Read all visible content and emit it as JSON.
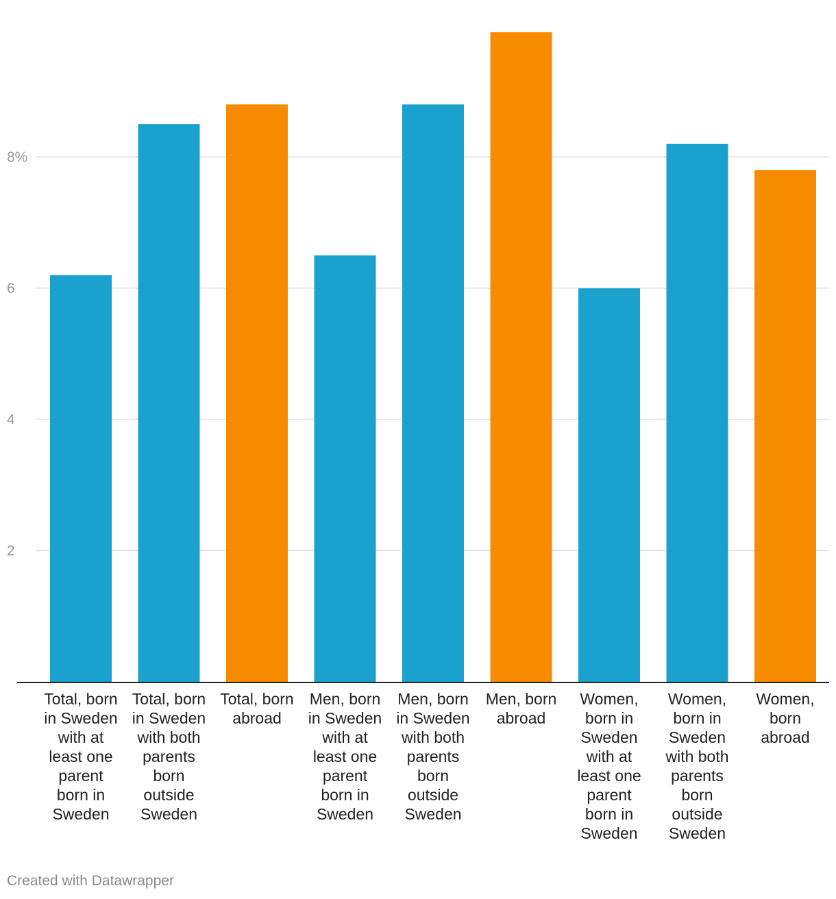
{
  "chart_data": {
    "type": "bar",
    "categories": [
      "Total, born in Sweden with at least one parent born in Sweden",
      "Total, born in Sweden with both parents born outside Sweden",
      "Total, born abroad",
      "Men, born in Sweden with at least one parent born in Sweden",
      "Men, born in Sweden with both parents born outside Sweden",
      "Men, born abroad",
      "Women, born in Sweden with at least one parent born in Sweden",
      "Women, born in Sweden with both parents born outside Sweden",
      "Women, born abroad"
    ],
    "category_lines": [
      [
        "Total, born",
        "in Sweden",
        "with at",
        "least one",
        "parent",
        "born in",
        "Sweden"
      ],
      [
        "Total, born",
        "in Sweden",
        "with both",
        "parents",
        "born",
        "outside",
        "Sweden"
      ],
      [
        "Total, born",
        "abroad"
      ],
      [
        "Men, born",
        "in Sweden",
        "with at",
        "least one",
        "parent",
        "born in",
        "Sweden"
      ],
      [
        "Men, born",
        "in Sweden",
        "with both",
        "parents",
        "born",
        "outside",
        "Sweden"
      ],
      [
        "Men, born",
        "abroad"
      ],
      [
        "Women,",
        "born in",
        "Sweden",
        "with at",
        "least one",
        "parent",
        "born in",
        "Sweden"
      ],
      [
        "Women,",
        "born in",
        "Sweden",
        "with both",
        "parents",
        "born",
        "outside",
        "Sweden"
      ],
      [
        "Women,",
        "born",
        "abroad"
      ]
    ],
    "values": [
      6.2,
      8.5,
      8.8,
      6.5,
      8.8,
      9.9,
      6.0,
      8.2,
      7.8
    ],
    "bar_colors": [
      "#1aa1ce",
      "#1aa1ce",
      "#f78b00",
      "#1aa1ce",
      "#1aa1ce",
      "#f78b00",
      "#1aa1ce",
      "#1aa1ce",
      "#f78b00"
    ],
    "ylim": [
      0,
      10
    ],
    "yticks": [
      2,
      4,
      6,
      8
    ],
    "ytick_labels": [
      "2",
      "4",
      "6",
      "8%"
    ],
    "grid": true,
    "title": "",
    "xlabel": "",
    "ylabel": ""
  },
  "footer": {
    "credit": "Created with Datawrapper"
  },
  "colors": {
    "born_in_sweden": "#1aa1ce",
    "born_abroad": "#f78b00",
    "gridline": "#e2e2e2",
    "axis": "#222222"
  }
}
